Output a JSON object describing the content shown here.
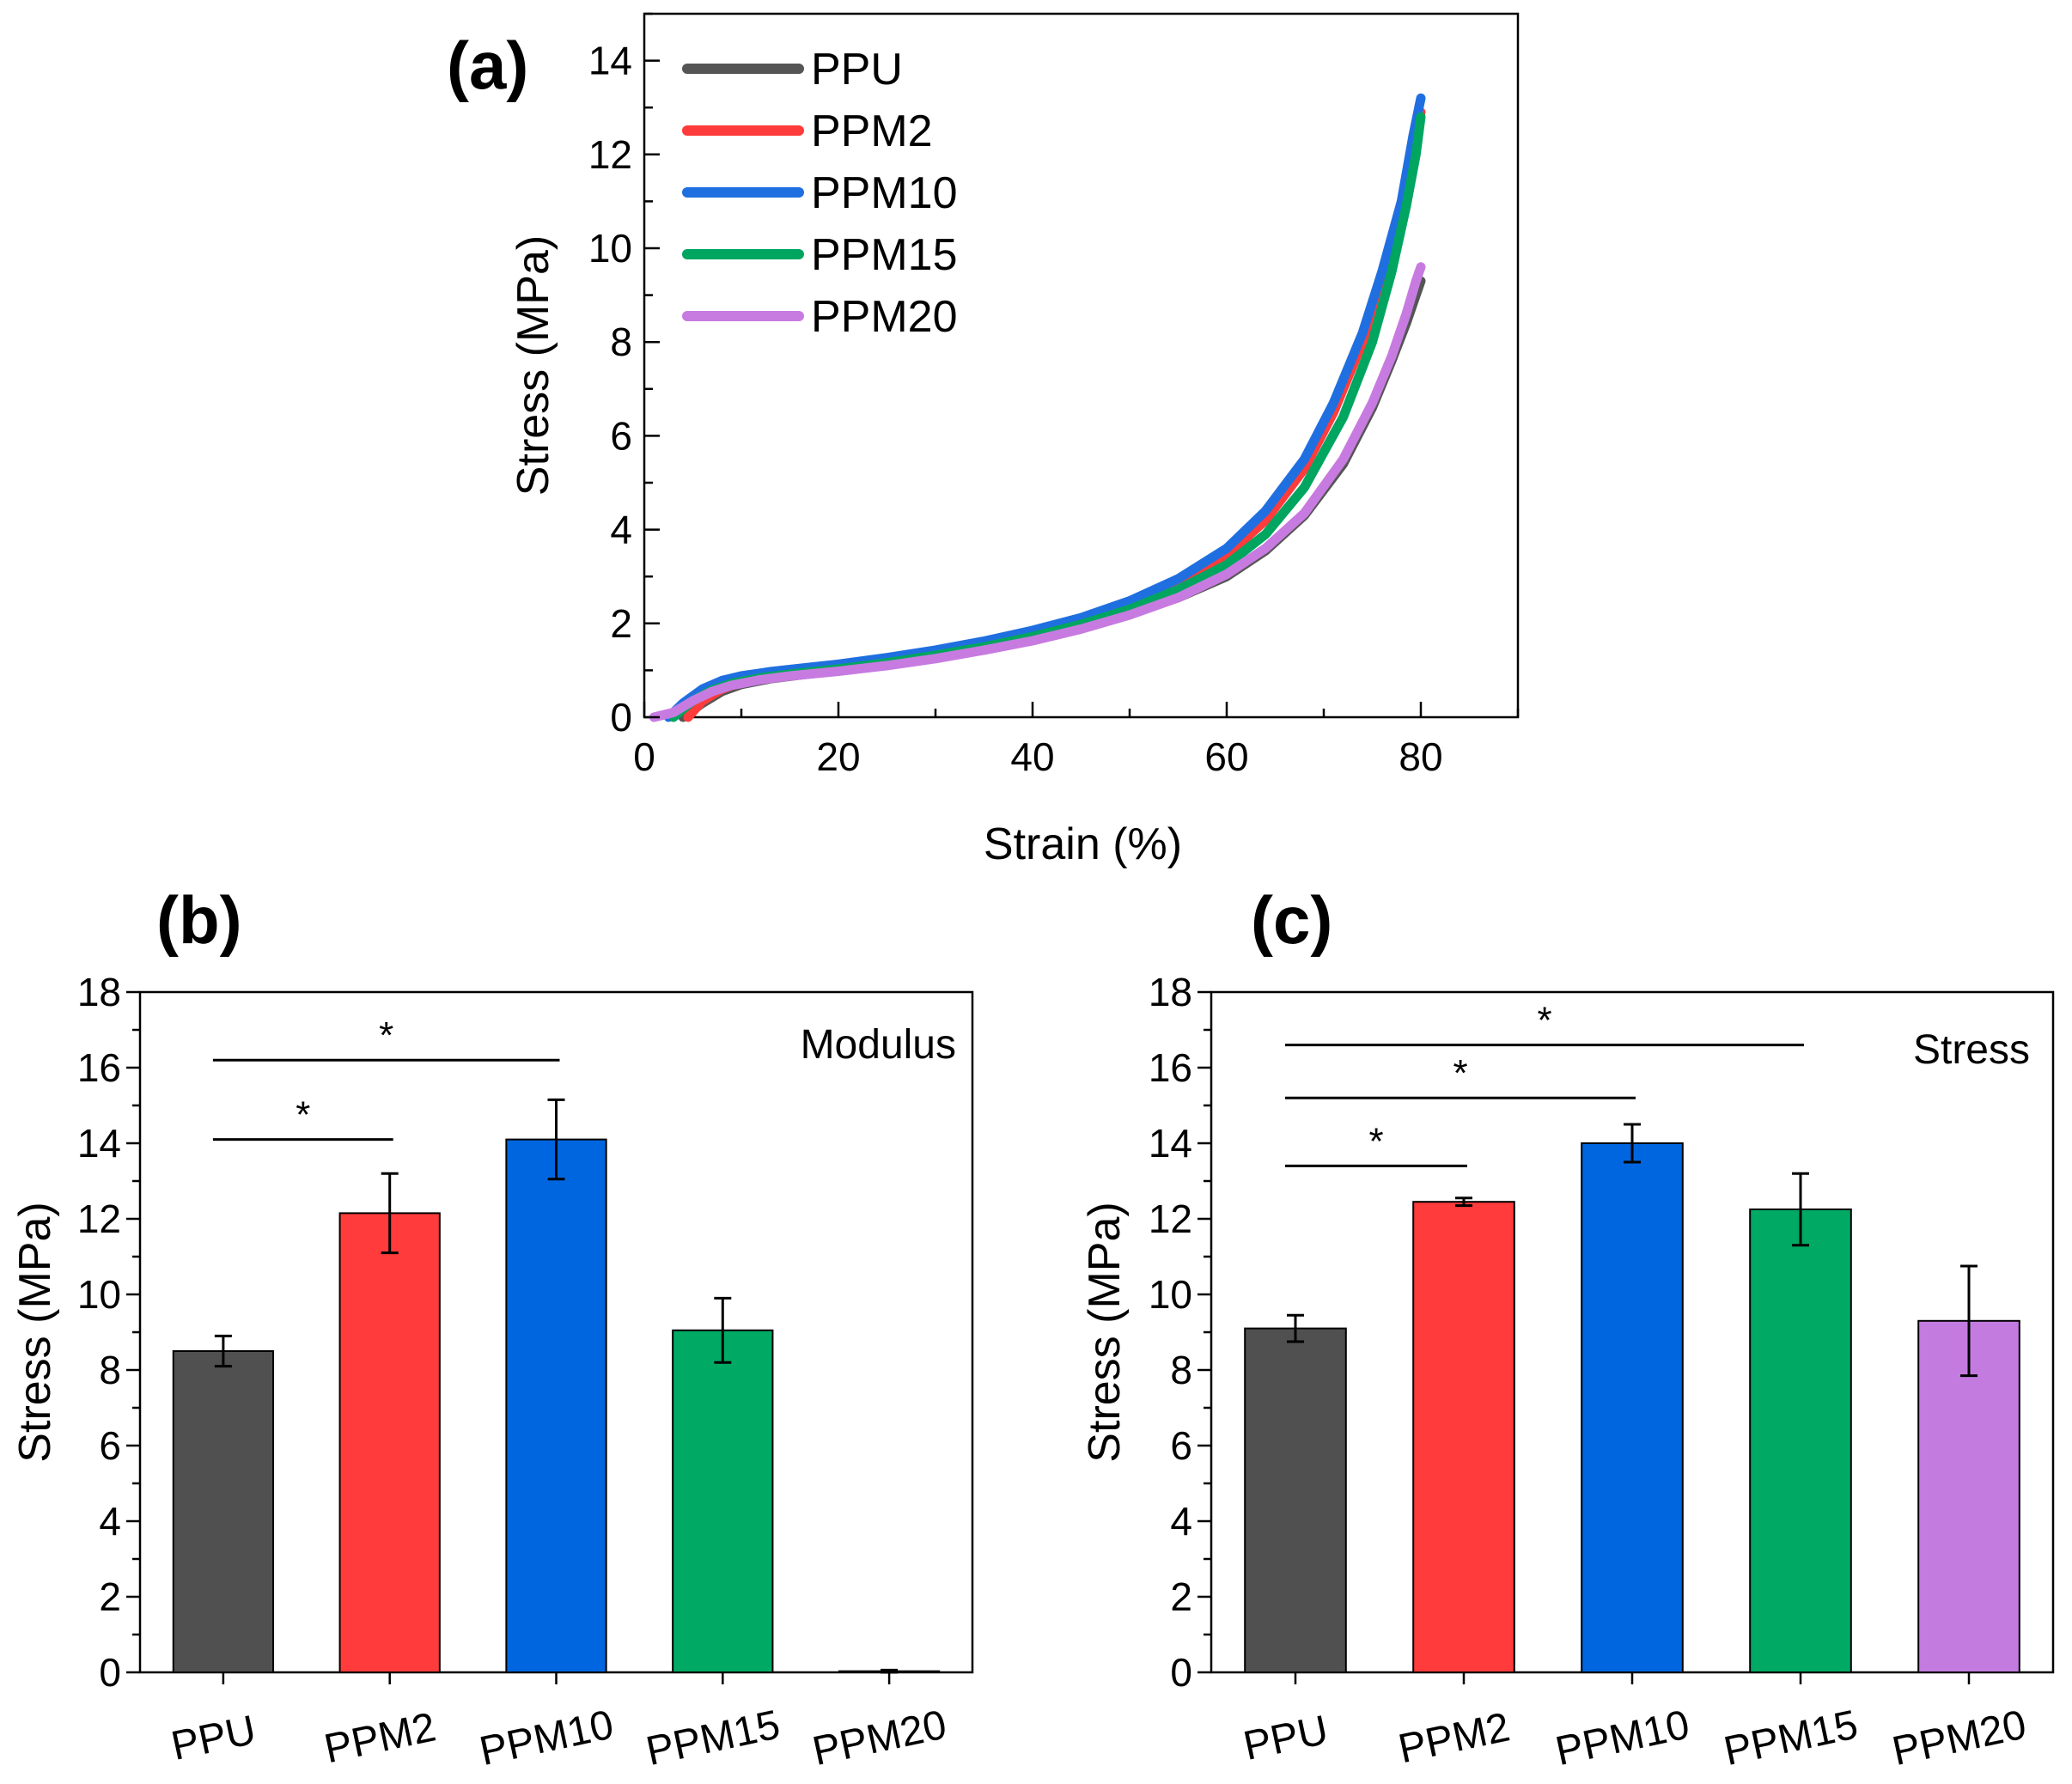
{
  "chart_data": [
    {
      "panel": "(a)",
      "type": "line",
      "xlabel": "Strain (%)",
      "ylabel": "Stress (MPa)",
      "xlim": [
        0,
        90
      ],
      "ylim": [
        0,
        15
      ],
      "xticks": [
        0,
        20,
        40,
        60,
        80
      ],
      "yticks": [
        0,
        2,
        4,
        6,
        8,
        10,
        12,
        14
      ],
      "legend_position": "top-left",
      "series": [
        {
          "name": "PPU",
          "color": "#555555",
          "x": [
            4,
            6,
            8,
            10,
            13,
            16,
            20,
            25,
            30,
            35,
            40,
            45,
            50,
            55,
            60,
            64,
            68,
            72,
            75,
            77,
            78.5,
            79.5,
            80
          ],
          "y": [
            0,
            0.3,
            0.55,
            0.7,
            0.82,
            0.9,
            1.0,
            1.12,
            1.27,
            1.45,
            1.65,
            1.9,
            2.2,
            2.55,
            3.0,
            3.55,
            4.3,
            5.4,
            6.6,
            7.6,
            8.4,
            9.0,
            9.3
          ]
        },
        {
          "name": "PPM2",
          "color": "#ff3b3b",
          "x": [
            4.5,
            6,
            8,
            10,
            13,
            16,
            20,
            25,
            30,
            35,
            40,
            45,
            50,
            55,
            60,
            64,
            68,
            71,
            74,
            76,
            78,
            79.2,
            80
          ],
          "y": [
            0,
            0.35,
            0.6,
            0.75,
            0.88,
            0.96,
            1.06,
            1.2,
            1.36,
            1.56,
            1.78,
            2.05,
            2.4,
            2.85,
            3.45,
            4.2,
            5.3,
            6.5,
            8.0,
            9.3,
            10.8,
            12.1,
            12.9
          ]
        },
        {
          "name": "PPM10",
          "color": "#1f6fe0",
          "x": [
            2.5,
            4,
            6,
            8,
            10,
            13,
            16,
            20,
            25,
            30,
            35,
            40,
            45,
            50,
            55,
            60,
            64,
            68,
            71,
            74,
            76,
            78,
            79.2,
            80
          ],
          "y": [
            0,
            0.3,
            0.6,
            0.78,
            0.88,
            0.97,
            1.04,
            1.13,
            1.27,
            1.43,
            1.62,
            1.85,
            2.12,
            2.48,
            2.95,
            3.6,
            4.4,
            5.5,
            6.7,
            8.2,
            9.5,
            11.0,
            12.4,
            13.2
          ]
        },
        {
          "name": "PPM15",
          "color": "#00a560",
          "x": [
            3,
            5,
            7,
            9,
            12,
            15,
            20,
            25,
            30,
            35,
            40,
            45,
            50,
            55,
            60,
            64,
            68,
            72,
            75,
            77,
            78.5,
            79.5,
            80
          ],
          "y": [
            0,
            0.35,
            0.58,
            0.72,
            0.84,
            0.92,
            1.03,
            1.16,
            1.32,
            1.5,
            1.72,
            1.98,
            2.3,
            2.72,
            3.25,
            3.9,
            4.9,
            6.4,
            8.0,
            9.5,
            10.9,
            12.0,
            12.8
          ]
        },
        {
          "name": "PPM20",
          "color": "#c77be0",
          "x": [
            1,
            3,
            5,
            7,
            9,
            12,
            15,
            20,
            25,
            30,
            35,
            40,
            45,
            50,
            55,
            60,
            64,
            68,
            72,
            75,
            77,
            78.5,
            79.5,
            80
          ],
          "y": [
            0,
            0.1,
            0.35,
            0.55,
            0.68,
            0.8,
            0.88,
            0.98,
            1.1,
            1.25,
            1.43,
            1.63,
            1.88,
            2.18,
            2.55,
            3.05,
            3.6,
            4.35,
            5.5,
            6.7,
            7.7,
            8.6,
            9.3,
            9.6
          ]
        }
      ]
    },
    {
      "panel": "(b)",
      "type": "bar",
      "annotation": "Modulus",
      "ylabel": "Stress (MPa)",
      "ylim": [
        0,
        18
      ],
      "yticks": [
        0,
        2,
        4,
        6,
        8,
        10,
        12,
        14,
        16,
        18
      ],
      "categories": [
        "PPU",
        "PPM2",
        "PPM10",
        "PPM15",
        "PPM20"
      ],
      "values": [
        8.5,
        12.15,
        14.1,
        9.05,
        0.03
      ],
      "errors": [
        0.4,
        1.05,
        1.05,
        0.85,
        0.03
      ],
      "colors": [
        "#505050",
        "#ff3b3b",
        "#0066e0",
        "#00aa64",
        "#c37be0"
      ],
      "significance": [
        {
          "from": 0,
          "to": 1,
          "label": "*",
          "y": 14.1
        },
        {
          "from": 0,
          "to": 2,
          "label": "*",
          "y": 16.2
        }
      ]
    },
    {
      "panel": "(c)",
      "type": "bar",
      "annotation": "Stress",
      "ylabel": "Stress (MPa)",
      "ylim": [
        0,
        18
      ],
      "yticks": [
        0,
        2,
        4,
        6,
        8,
        10,
        12,
        14,
        16,
        18
      ],
      "categories": [
        "PPU",
        "PPM2",
        "PPM10",
        "PPM15",
        "PPM20"
      ],
      "values": [
        9.1,
        12.45,
        14.0,
        12.25,
        9.3
      ],
      "errors": [
        0.35,
        0.1,
        0.5,
        0.95,
        1.45
      ],
      "colors": [
        "#505050",
        "#ff3b3b",
        "#0066e0",
        "#00aa64",
        "#c37be0"
      ],
      "significance": [
        {
          "from": 0,
          "to": 1,
          "label": "*",
          "y": 13.4
        },
        {
          "from": 0,
          "to": 2,
          "label": "*",
          "y": 15.2
        },
        {
          "from": 0,
          "to": 3,
          "label": "*",
          "y": 16.6
        }
      ]
    }
  ]
}
